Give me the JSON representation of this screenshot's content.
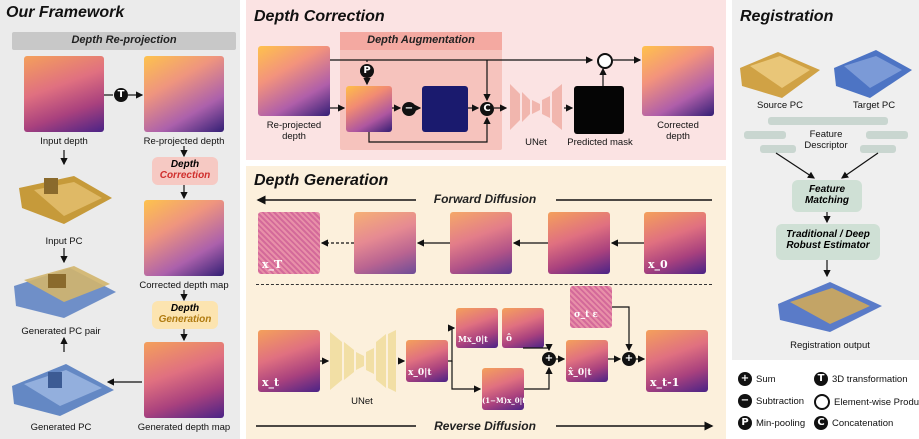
{
  "framework": {
    "title": "Our Framework",
    "reprojection_header": "Depth Re-projection",
    "input_depth": "Input depth",
    "reprojected_depth": "Re-projected depth",
    "depth_correction_box": [
      "Depth",
      "Correction"
    ],
    "input_pc": "Input PC",
    "corrected_depth_map": "Corrected depth map",
    "depth_generation_box": [
      "Depth",
      "Generation"
    ],
    "generated_pc_pair": "Generated PC pair",
    "generated_pc": "Generated PC",
    "generated_depth_map": "Generated depth map",
    "transform_symbol": "T"
  },
  "correction": {
    "title": "Depth Correction",
    "augmentation_header": "Depth Augmentation",
    "reprojected_depth": [
      "Re-projected",
      "depth"
    ],
    "unet": "UNet",
    "predicted_mask": "Predicted mask",
    "corrected_depth": [
      "Corrected",
      "depth"
    ],
    "minpool_symbol": "P",
    "concat_symbol": "C"
  },
  "generation": {
    "title": "Depth Generation",
    "forward": "Forward Diffusion",
    "reverse": "Reverse Diffusion",
    "unet": "UNet",
    "labels": {
      "xT": "x_T",
      "x0": "x_0",
      "xt": "x_t",
      "x0t": "x_0|t",
      "mx0t": "Mx_0|t",
      "obar": "ô",
      "sigma": "σ_t ε",
      "inv": "(1−M)x_0|t",
      "xhat": "x̂_0|t",
      "xt1": "x_t-1"
    }
  },
  "registration": {
    "title": "Registration",
    "source_pc": "Source PC",
    "target_pc": "Target PC",
    "feature_descriptor": [
      "Feature",
      "Descriptor"
    ],
    "feature_matching": [
      "Feature",
      "Matching"
    ],
    "estimator": [
      "Traditional / Deep",
      "Robust Estimator"
    ],
    "output": "Registration output"
  },
  "legend": {
    "sum": "Sum",
    "transform": "3D transformation",
    "subtraction": "Subtraction",
    "product": "Element-wise Product",
    "minpool": "Min-pooling",
    "concatenation": "Concatenation",
    "symbols": {
      "sum": "+",
      "transform": "T",
      "subtraction": "−",
      "minpool": "P",
      "concatenation": "C"
    }
  },
  "colors": {
    "framework_bg": "#ebebeb",
    "correction_bg": "#fbe3e3",
    "generation_bg": "#fcf0dc",
    "registration_bg": "#efefef",
    "correction_box": "#f6c9c3",
    "generation_box": "#fce4b0",
    "estimator_box": "#cfe0d5"
  }
}
